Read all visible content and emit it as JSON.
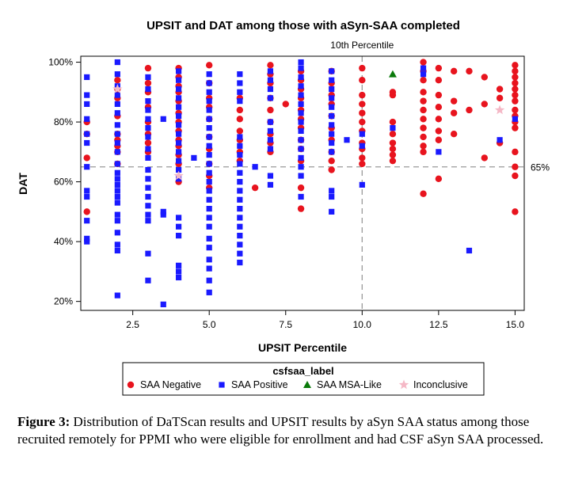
{
  "chart_data": {
    "type": "scatter",
    "title": "UPSIT and DAT among those with aSyn-SAA completed",
    "xlabel": "UPSIT Percentile",
    "ylabel": "DAT",
    "xlim": [
      0.8,
      15.3
    ],
    "ylim": [
      17,
      102
    ],
    "x_ticks": [
      2.5,
      5.0,
      7.5,
      10.0,
      12.5,
      15.0
    ],
    "x_tick_labels": [
      "2.5",
      "5.0",
      "7.5",
      "10.0",
      "12.5",
      "15.0"
    ],
    "y_ticks": [
      20,
      40,
      60,
      80,
      100
    ],
    "y_tick_labels": [
      "20%",
      "40%",
      "60%",
      "80%",
      "100%"
    ],
    "grid": false,
    "legend_title": "csfsaa_label",
    "legend_position": "bottom",
    "reference_lines": [
      {
        "axis": "x",
        "value": 10,
        "label": "10th Percentile",
        "style": "dashed"
      },
      {
        "axis": "y",
        "value": 65,
        "label": "65%",
        "style": "dashed"
      }
    ],
    "series": [
      {
        "name": "SAA Negative",
        "marker": "circle",
        "color": "#e8141e",
        "points": [
          [
            1,
            50
          ],
          [
            1,
            68
          ],
          [
            1,
            76
          ],
          [
            1,
            80
          ],
          [
            2,
            91
          ],
          [
            2,
            88
          ],
          [
            2,
            82
          ],
          [
            2,
            76
          ],
          [
            2,
            74
          ],
          [
            2,
            72
          ],
          [
            2,
            70
          ],
          [
            2,
            66
          ],
          [
            2,
            94
          ],
          [
            3,
            98
          ],
          [
            3,
            93
          ],
          [
            3,
            90
          ],
          [
            3,
            85
          ],
          [
            3,
            80
          ],
          [
            3,
            76
          ],
          [
            3,
            73
          ],
          [
            3,
            70
          ],
          [
            4,
            98
          ],
          [
            4,
            95
          ],
          [
            4,
            92
          ],
          [
            4,
            90
          ],
          [
            4,
            87
          ],
          [
            4,
            83
          ],
          [
            4,
            80
          ],
          [
            4,
            77
          ],
          [
            4,
            74
          ],
          [
            4,
            72
          ],
          [
            4,
            69
          ],
          [
            4,
            66
          ],
          [
            4,
            60
          ],
          [
            5,
            99
          ],
          [
            5,
            93
          ],
          [
            5,
            88
          ],
          [
            5,
            85
          ],
          [
            5,
            81
          ],
          [
            5,
            75
          ],
          [
            5,
            71
          ],
          [
            5,
            66
          ],
          [
            5,
            62
          ],
          [
            5,
            58
          ],
          [
            6,
            88
          ],
          [
            6,
            84
          ],
          [
            6,
            81
          ],
          [
            6,
            77
          ],
          [
            6,
            74
          ],
          [
            6,
            70
          ],
          [
            6,
            67
          ],
          [
            6.5,
            58
          ],
          [
            7,
            99
          ],
          [
            7,
            96
          ],
          [
            7,
            93
          ],
          [
            7,
            88
          ],
          [
            7,
            84
          ],
          [
            7,
            80
          ],
          [
            7,
            76
          ],
          [
            7,
            73
          ],
          [
            7,
            70
          ],
          [
            7.5,
            86
          ],
          [
            8,
            97
          ],
          [
            8,
            94
          ],
          [
            8,
            91
          ],
          [
            8,
            88
          ],
          [
            8,
            84
          ],
          [
            8,
            81
          ],
          [
            8,
            78
          ],
          [
            8,
            74
          ],
          [
            8,
            71
          ],
          [
            8,
            67
          ],
          [
            8,
            58
          ],
          [
            8,
            51
          ],
          [
            9,
            97
          ],
          [
            9,
            93
          ],
          [
            9,
            89
          ],
          [
            9,
            86
          ],
          [
            9,
            82
          ],
          [
            9,
            78
          ],
          [
            9,
            74
          ],
          [
            9,
            70
          ],
          [
            9,
            67
          ],
          [
            9,
            64
          ],
          [
            10,
            98
          ],
          [
            10,
            94
          ],
          [
            10,
            89
          ],
          [
            10,
            86
          ],
          [
            10,
            83
          ],
          [
            10,
            80
          ],
          [
            10,
            77
          ],
          [
            10,
            73
          ],
          [
            10,
            71
          ],
          [
            10,
            68
          ],
          [
            10,
            66
          ],
          [
            11,
            89
          ],
          [
            11,
            90
          ],
          [
            11,
            80
          ],
          [
            11,
            76
          ],
          [
            11,
            73
          ],
          [
            11,
            71
          ],
          [
            11,
            69
          ],
          [
            11,
            67
          ],
          [
            12,
            100
          ],
          [
            12,
            97
          ],
          [
            12,
            94
          ],
          [
            12,
            90
          ],
          [
            12,
            87
          ],
          [
            12,
            84
          ],
          [
            12,
            81
          ],
          [
            12,
            78
          ],
          [
            12,
            75
          ],
          [
            12,
            72
          ],
          [
            12,
            70
          ],
          [
            12,
            56
          ],
          [
            12.5,
            98
          ],
          [
            12.5,
            94
          ],
          [
            12.5,
            89
          ],
          [
            12.5,
            85
          ],
          [
            12.5,
            81
          ],
          [
            12.5,
            77
          ],
          [
            12.5,
            74
          ],
          [
            12.5,
            61
          ],
          [
            13,
            97
          ],
          [
            13,
            87
          ],
          [
            13,
            83
          ],
          [
            13,
            76
          ],
          [
            13.5,
            97
          ],
          [
            13.5,
            84
          ],
          [
            14,
            95
          ],
          [
            14,
            86
          ],
          [
            14,
            68
          ],
          [
            14.5,
            91
          ],
          [
            14.5,
            88
          ],
          [
            14.5,
            73
          ],
          [
            15,
            99
          ],
          [
            15,
            97
          ],
          [
            15,
            95
          ],
          [
            15,
            93
          ],
          [
            15,
            91
          ],
          [
            15,
            89
          ],
          [
            15,
            87
          ],
          [
            15,
            84
          ],
          [
            15,
            82
          ],
          [
            15,
            80
          ],
          [
            15,
            78
          ],
          [
            15,
            70
          ],
          [
            15,
            65
          ],
          [
            15,
            62
          ],
          [
            15,
            50
          ]
        ]
      },
      {
        "name": "SAA Positive",
        "marker": "square",
        "color": "#1a1aff",
        "points": [
          [
            1,
            95
          ],
          [
            1,
            89
          ],
          [
            1,
            86
          ],
          [
            1,
            81
          ],
          [
            1,
            76
          ],
          [
            1,
            73
          ],
          [
            1,
            65
          ],
          [
            1,
            57
          ],
          [
            1,
            55
          ],
          [
            1,
            47
          ],
          [
            1,
            41
          ],
          [
            1,
            40
          ],
          [
            2,
            100
          ],
          [
            2,
            96
          ],
          [
            2,
            92
          ],
          [
            2,
            89
          ],
          [
            2,
            86
          ],
          [
            2,
            83
          ],
          [
            2,
            79
          ],
          [
            2,
            76
          ],
          [
            2,
            73
          ],
          [
            2,
            70
          ],
          [
            2,
            66
          ],
          [
            2,
            63
          ],
          [
            2,
            61
          ],
          [
            2,
            59
          ],
          [
            2,
            57
          ],
          [
            2,
            55
          ],
          [
            2,
            53
          ],
          [
            2,
            49
          ],
          [
            2,
            47
          ],
          [
            2,
            43
          ],
          [
            2,
            39
          ],
          [
            2,
            37
          ],
          [
            2,
            22
          ],
          [
            3,
            95
          ],
          [
            3,
            91
          ],
          [
            3,
            87
          ],
          [
            3,
            84
          ],
          [
            3,
            81
          ],
          [
            3,
            78
          ],
          [
            3,
            75
          ],
          [
            3,
            71
          ],
          [
            3,
            68
          ],
          [
            3,
            64
          ],
          [
            3,
            61
          ],
          [
            3,
            58
          ],
          [
            3,
            55
          ],
          [
            3,
            52
          ],
          [
            3,
            49
          ],
          [
            3,
            47
          ],
          [
            3,
            36
          ],
          [
            3,
            27
          ],
          [
            3.5,
            81
          ],
          [
            3.5,
            50
          ],
          [
            3.5,
            49
          ],
          [
            3.5,
            19
          ],
          [
            4,
            97
          ],
          [
            4,
            94
          ],
          [
            4,
            91
          ],
          [
            4,
            88
          ],
          [
            4,
            85
          ],
          [
            4,
            82
          ],
          [
            4,
            79
          ],
          [
            4,
            76
          ],
          [
            4,
            73
          ],
          [
            4,
            70
          ],
          [
            4,
            67
          ],
          [
            4,
            64
          ],
          [
            4,
            61
          ],
          [
            4,
            48
          ],
          [
            4,
            45
          ],
          [
            4,
            42
          ],
          [
            4,
            32
          ],
          [
            4,
            30
          ],
          [
            4,
            28
          ],
          [
            4.5,
            68
          ],
          [
            5,
            96
          ],
          [
            5,
            93
          ],
          [
            5,
            90
          ],
          [
            5,
            87
          ],
          [
            5,
            84
          ],
          [
            5,
            81
          ],
          [
            5,
            78
          ],
          [
            5,
            75
          ],
          [
            5,
            72
          ],
          [
            5,
            69
          ],
          [
            5,
            66
          ],
          [
            5,
            63
          ],
          [
            5,
            60
          ],
          [
            5,
            57
          ],
          [
            5,
            54
          ],
          [
            5,
            51
          ],
          [
            5,
            48
          ],
          [
            5,
            45
          ],
          [
            5,
            41
          ],
          [
            5,
            38
          ],
          [
            5,
            34
          ],
          [
            5,
            31
          ],
          [
            5,
            27
          ],
          [
            5,
            23
          ],
          [
            6,
            96
          ],
          [
            6,
            93
          ],
          [
            6,
            90
          ],
          [
            6,
            87
          ],
          [
            6,
            75
          ],
          [
            6,
            72
          ],
          [
            6,
            69
          ],
          [
            6,
            66
          ],
          [
            6,
            63
          ],
          [
            6,
            60
          ],
          [
            6,
            57
          ],
          [
            6,
            54
          ],
          [
            6,
            51
          ],
          [
            6,
            48
          ],
          [
            6,
            45
          ],
          [
            6,
            42
          ],
          [
            6,
            39
          ],
          [
            6,
            36
          ],
          [
            6,
            33
          ],
          [
            6.5,
            65
          ],
          [
            7,
            97
          ],
          [
            7,
            94
          ],
          [
            7,
            91
          ],
          [
            7,
            88
          ],
          [
            7,
            80
          ],
          [
            7,
            77
          ],
          [
            7,
            74
          ],
          [
            7,
            71
          ],
          [
            7,
            62
          ],
          [
            7,
            59
          ],
          [
            8,
            100
          ],
          [
            8,
            98
          ],
          [
            8,
            95
          ],
          [
            8,
            92
          ],
          [
            8,
            89
          ],
          [
            8,
            86
          ],
          [
            8,
            83
          ],
          [
            8,
            80
          ],
          [
            8,
            77
          ],
          [
            8,
            74
          ],
          [
            8,
            71
          ],
          [
            8,
            68
          ],
          [
            8,
            65
          ],
          [
            8,
            62
          ],
          [
            8,
            55
          ],
          [
            9,
            97
          ],
          [
            9,
            94
          ],
          [
            9,
            91
          ],
          [
            9,
            88
          ],
          [
            9,
            85
          ],
          [
            9,
            82
          ],
          [
            9,
            79
          ],
          [
            9,
            76
          ],
          [
            9,
            73
          ],
          [
            9,
            70
          ],
          [
            9,
            57
          ],
          [
            9,
            55
          ],
          [
            9,
            50
          ],
          [
            9.5,
            74
          ],
          [
            10,
            76
          ],
          [
            10,
            72
          ],
          [
            10,
            59
          ],
          [
            11,
            78
          ],
          [
            12,
            98
          ],
          [
            12,
            96
          ],
          [
            12.5,
            70
          ],
          [
            13.5,
            37
          ],
          [
            14.5,
            74
          ],
          [
            15,
            81
          ]
        ]
      },
      {
        "name": "SAA MSA-Like",
        "marker": "triangle",
        "color": "#0a7a0a",
        "points": [
          [
            11,
            96
          ]
        ]
      },
      {
        "name": "Inconclusive",
        "marker": "star",
        "color": "#f5b8c6",
        "points": [
          [
            2,
            91
          ],
          [
            4,
            62
          ],
          [
            14.5,
            84
          ]
        ]
      }
    ]
  },
  "caption": {
    "label": "Figure 3:",
    "text": " Distribution of DaTScan results and UPSIT results by aSyn SAA status among those recruited remotely for PPMI who were eligible for enrollment and had CSF aSyn SAA processed."
  }
}
